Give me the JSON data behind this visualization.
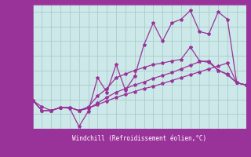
{
  "background_color": "#cce8e8",
  "grid_color": "#aacccc",
  "line_color": "#993399",
  "xlabel": "Windchill (Refroidissement éolien,°C)",
  "xlabel_bg": "#993399",
  "xlabel_fg": "#ffffff",
  "xlim": [
    0,
    23
  ],
  "ylim": [
    6,
    23
  ],
  "xticks": [
    0,
    1,
    2,
    3,
    4,
    5,
    6,
    7,
    8,
    9,
    10,
    11,
    12,
    13,
    14,
    15,
    16,
    17,
    18,
    19,
    20,
    21,
    22,
    23
  ],
  "yticks": [
    6,
    8,
    10,
    12,
    14,
    16,
    18,
    20,
    22
  ],
  "series": [
    [
      9.9,
      9.0,
      8.5,
      8.9,
      8.8,
      6.3,
      8.4,
      13.0,
      11.0,
      14.8,
      11.3,
      13.2,
      17.5,
      20.5,
      18.0,
      20.5,
      21.0,
      22.2,
      19.3,
      19.0,
      22.0,
      21.0,
      12.3,
      12.0
    ],
    [
      9.9,
      8.5,
      8.5,
      8.9,
      8.9,
      8.5,
      8.8,
      9.3,
      9.8,
      10.3,
      10.7,
      11.1,
      11.5,
      11.8,
      12.2,
      12.6,
      13.0,
      13.4,
      13.8,
      14.2,
      14.6,
      15.0,
      12.3,
      12.0
    ],
    [
      9.9,
      8.5,
      8.5,
      8.9,
      8.9,
      8.5,
      8.8,
      9.5,
      10.3,
      11.0,
      11.5,
      12.0,
      12.4,
      12.9,
      13.3,
      13.7,
      14.2,
      14.7,
      15.2,
      15.3,
      14.0,
      13.5,
      12.3,
      12.0
    ],
    [
      9.9,
      8.5,
      8.5,
      8.9,
      8.9,
      8.5,
      9.0,
      10.5,
      11.5,
      13.0,
      13.5,
      14.0,
      14.4,
      14.8,
      15.0,
      15.3,
      15.5,
      17.2,
      15.3,
      15.1,
      14.0,
      13.4,
      12.3,
      12.0
    ]
  ]
}
